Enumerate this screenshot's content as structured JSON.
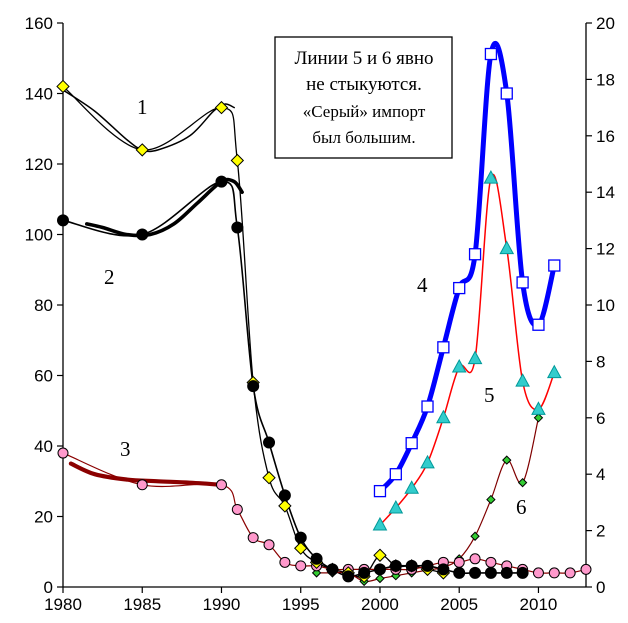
{
  "chart_data": {
    "type": "line",
    "title": "",
    "xlabel": "",
    "ylabel": "",
    "y2label": "",
    "xlim": [
      1980,
      2013
    ],
    "ylim": [
      0,
      160
    ],
    "y2lim": [
      0,
      20
    ],
    "grid": false,
    "x_ticks": [
      "1980",
      "1985",
      "1990",
      "1995",
      "2000",
      "2005",
      "2010"
    ],
    "y_ticks": [
      "0",
      "20",
      "40",
      "60",
      "80",
      "100",
      "120",
      "140",
      "160"
    ],
    "y2_ticks": [
      "0",
      "2",
      "4",
      "6",
      "8",
      "10",
      "12",
      "14",
      "16",
      "18",
      "20"
    ],
    "annotation": [
      "Линии 5 и 6 явно",
      "не стыкуются.",
      "«Серый» импорт",
      "был большим."
    ],
    "series": [
      {
        "name": "1",
        "axis": "left",
        "color": "#000000",
        "marker": "diamond",
        "marker_fill": "#ffff00",
        "points": [
          [
            1980,
            142
          ],
          [
            1985,
            124
          ],
          [
            1990,
            136
          ],
          [
            1991,
            121
          ],
          [
            1992,
            58
          ],
          [
            1993,
            31
          ],
          [
            1994,
            23
          ],
          [
            1995,
            11
          ],
          [
            1996,
            7
          ],
          [
            1997,
            5
          ],
          [
            1998,
            4
          ],
          [
            1999,
            3
          ],
          [
            2000,
            9
          ],
          [
            2001,
            6
          ],
          [
            2002,
            6
          ],
          [
            2003,
            5
          ],
          [
            2004,
            4
          ]
        ],
        "fit_curve": [
          [
            1980,
            141
          ],
          [
            1982,
            135
          ],
          [
            1984,
            127
          ],
          [
            1985,
            124
          ],
          [
            1986,
            124
          ],
          [
            1988,
            128
          ],
          [
            1989.5,
            135
          ],
          [
            1990.2,
            137
          ],
          [
            1990.8,
            136
          ]
        ]
      },
      {
        "name": "2",
        "axis": "left",
        "color": "#000000",
        "marker": "circle",
        "marker_fill": "#000000",
        "points": [
          [
            1980,
            104
          ],
          [
            1985,
            100
          ],
          [
            1990,
            115
          ],
          [
            1991,
            102
          ],
          [
            1992,
            57
          ],
          [
            1993,
            41
          ],
          [
            1994,
            26
          ],
          [
            1995,
            14
          ],
          [
            1996,
            8
          ],
          [
            1997,
            5
          ],
          [
            1998,
            3
          ],
          [
            1999,
            4
          ],
          [
            2000,
            5
          ],
          [
            2001,
            6
          ],
          [
            2002,
            6
          ],
          [
            2003,
            6
          ],
          [
            2004,
            5
          ],
          [
            2005,
            4
          ],
          [
            2006,
            4
          ],
          [
            2007,
            4
          ],
          [
            2008,
            4
          ],
          [
            2009,
            4
          ]
        ],
        "fit_curve": [
          [
            1981.5,
            103
          ],
          [
            1982.5,
            102
          ],
          [
            1984,
            100
          ],
          [
            1985.5,
            100
          ],
          [
            1987,
            103
          ],
          [
            1988.5,
            109
          ],
          [
            1990,
            115
          ],
          [
            1990.8,
            115
          ],
          [
            1991.3,
            112
          ]
        ]
      },
      {
        "name": "3",
        "axis": "left",
        "color": "#8b0000",
        "marker": "circle",
        "marker_fill": "#ff99cc",
        "points": [
          [
            1980,
            38
          ],
          [
            1985,
            29
          ],
          [
            1990,
            29
          ],
          [
            1991,
            22
          ],
          [
            1992,
            14
          ],
          [
            1993,
            12
          ],
          [
            1994,
            7
          ],
          [
            1995,
            6
          ],
          [
            1996,
            6
          ],
          [
            1997,
            5
          ],
          [
            1998,
            5
          ],
          [
            1999,
            5
          ],
          [
            2000,
            5
          ],
          [
            2001,
            5
          ],
          [
            2002,
            5
          ],
          [
            2003,
            6
          ],
          [
            2004,
            7
          ],
          [
            2005,
            7
          ],
          [
            2006,
            8
          ],
          [
            2007,
            7
          ],
          [
            2008,
            6
          ],
          [
            2009,
            5
          ],
          [
            2010,
            4
          ],
          [
            2011,
            4
          ],
          [
            2012,
            4
          ],
          [
            2013,
            5
          ]
        ],
        "fit_curve": [
          [
            1980.5,
            35
          ],
          [
            1982,
            32
          ],
          [
            1984,
            30.5
          ],
          [
            1986,
            30
          ],
          [
            1988,
            29.6
          ],
          [
            1990,
            29
          ]
        ]
      },
      {
        "name": "4",
        "axis": "right",
        "color": "#0000ff",
        "marker": "square",
        "marker_fill": "#ffffff",
        "points": [
          [
            2000,
            3.4
          ],
          [
            2001,
            4.0
          ],
          [
            2002,
            5.1
          ],
          [
            2003,
            6.4
          ],
          [
            2004,
            8.5
          ],
          [
            2005,
            10.6
          ],
          [
            2006,
            11.8
          ],
          [
            2007,
            18.9
          ],
          [
            2008,
            17.5
          ],
          [
            2009,
            10.8
          ],
          [
            2010,
            9.3
          ],
          [
            2011,
            11.4
          ]
        ]
      },
      {
        "name": "5",
        "axis": "right",
        "color": "#ff0000",
        "marker": "triangle",
        "marker_fill": "#33cccc",
        "points": [
          [
            2000,
            2.2
          ],
          [
            2001,
            2.8
          ],
          [
            2002,
            3.5
          ],
          [
            2003,
            4.4
          ],
          [
            2004,
            6.0
          ],
          [
            2005,
            7.8
          ],
          [
            2006,
            8.1
          ],
          [
            2007,
            14.5
          ],
          [
            2008,
            12.0
          ],
          [
            2009,
            7.3
          ],
          [
            2010,
            6.3
          ],
          [
            2011,
            7.6
          ]
        ]
      },
      {
        "name": "6",
        "axis": "right",
        "color": "#800000",
        "marker": "diamond",
        "marker_fill": "#33cc33",
        "points": [
          [
            1996,
            0.5
          ],
          [
            1997,
            0.5
          ],
          [
            1998,
            0.5
          ],
          [
            1999,
            0.2
          ],
          [
            2000,
            0.3
          ],
          [
            2001,
            0.4
          ],
          [
            2002,
            0.5
          ],
          [
            2003,
            0.6
          ],
          [
            2004,
            0.7
          ],
          [
            2005,
            1.0
          ],
          [
            2006,
            1.8
          ],
          [
            2007,
            3.1
          ],
          [
            2008,
            4.5
          ],
          [
            2009,
            3.7
          ],
          [
            2010,
            6.0
          ]
        ]
      }
    ]
  }
}
